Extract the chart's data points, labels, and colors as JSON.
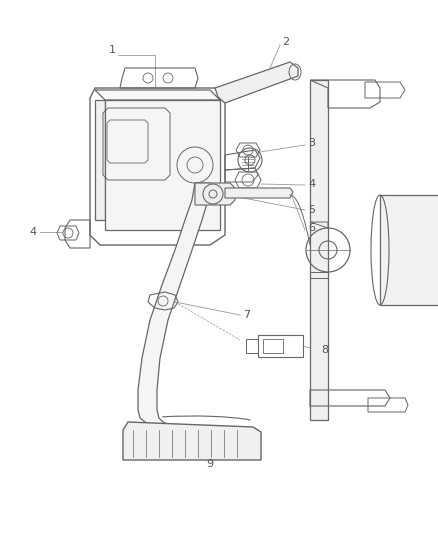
{
  "background_color": "#ffffff",
  "line_color": "#666666",
  "label_color": "#555555",
  "leader_color": "#999999",
  "figsize": [
    4.39,
    5.33
  ],
  "dpi": 100,
  "lw_main": 0.9,
  "lw_detail": 0.6,
  "label_fs": 8.0
}
